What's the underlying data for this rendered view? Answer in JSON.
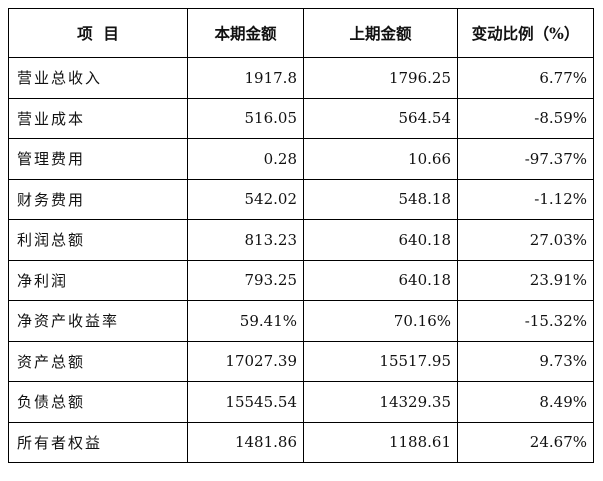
{
  "table": {
    "headers": [
      "项  目",
      "本期金额",
      "上期金额",
      "变动比例（%）"
    ],
    "rows": [
      [
        "营业总收入",
        "1917.8",
        "1796.25",
        "6.77%"
      ],
      [
        "营业成本",
        "516.05",
        "564.54",
        "-8.59%"
      ],
      [
        "管理费用",
        "0.28",
        "10.66",
        "-97.37%"
      ],
      [
        "财务费用",
        "542.02",
        "548.18",
        "-1.12%"
      ],
      [
        "利润总额",
        "813.23",
        "640.18",
        "27.03%"
      ],
      [
        "净利润",
        "793.25",
        "640.18",
        "23.91%"
      ],
      [
        "净资产收益率",
        "59.41%",
        "70.16%",
        "-15.32%"
      ],
      [
        "资产总额",
        "17027.39",
        "15517.95",
        "9.73%"
      ],
      [
        "负债总额",
        "15545.54",
        "14329.35",
        "8.49%"
      ],
      [
        "所有者权益",
        "1481.86",
        "1188.61",
        "24.67%"
      ]
    ]
  }
}
